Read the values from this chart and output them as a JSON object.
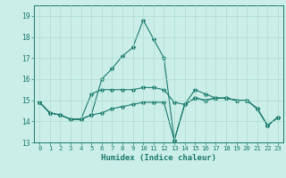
{
  "title": "",
  "xlabel": "Humidex (Indice chaleur)",
  "xlim": [
    -0.5,
    23.5
  ],
  "ylim": [
    13,
    19.5
  ],
  "yticks": [
    13,
    14,
    15,
    16,
    17,
    18,
    19
  ],
  "xticks": [
    0,
    1,
    2,
    3,
    4,
    5,
    6,
    7,
    8,
    9,
    10,
    11,
    12,
    13,
    14,
    15,
    16,
    17,
    18,
    19,
    20,
    21,
    22,
    23
  ],
  "bg_color": "#cceee8",
  "line_color": "#1a7a6e",
  "grid_color": "#aaddcc",
  "series1": [
    14.9,
    14.4,
    14.3,
    14.1,
    14.1,
    14.3,
    14.4,
    14.6,
    14.7,
    14.8,
    14.9,
    14.9,
    14.9,
    13.1,
    14.8,
    15.1,
    15.0,
    15.1,
    15.1,
    15.0,
    15.0,
    14.6,
    13.8,
    14.2
  ],
  "series2": [
    14.9,
    14.4,
    14.3,
    14.1,
    14.1,
    15.3,
    15.5,
    15.5,
    15.5,
    15.5,
    15.6,
    15.6,
    15.5,
    14.9,
    14.8,
    15.1,
    15.0,
    15.1,
    15.1,
    15.0,
    15.0,
    14.6,
    13.8,
    14.2
  ],
  "series3": [
    14.9,
    14.4,
    14.3,
    14.1,
    14.1,
    14.3,
    16.0,
    16.5,
    17.1,
    17.5,
    18.8,
    17.9,
    17.0,
    13.1,
    14.8,
    15.5,
    15.3,
    15.1,
    15.1,
    15.0,
    15.0,
    14.6,
    13.8,
    14.2
  ]
}
